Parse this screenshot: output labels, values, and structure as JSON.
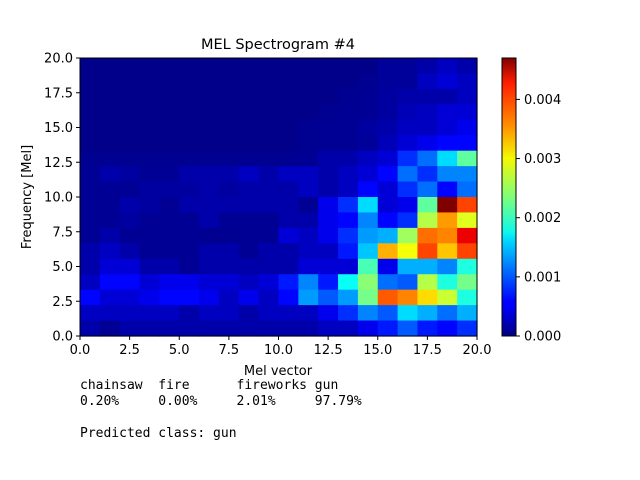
{
  "chart_data": {
    "type": "heatmap",
    "title": "MEL Spectrogram #4",
    "xlabel": "Mel vector",
    "ylabel": "Frequency [Mel]",
    "xlim": [
      0,
      20
    ],
    "ylim": [
      0,
      20
    ],
    "x_ticks": [
      "0.0",
      "2.5",
      "5.0",
      "7.5",
      "10.0",
      "12.5",
      "15.0",
      "17.5",
      "20.0"
    ],
    "y_ticks": [
      "0.0",
      "2.5",
      "5.0",
      "7.5",
      "10.0",
      "12.5",
      "15.0",
      "17.5",
      "20.0"
    ],
    "colormap": "jet",
    "colorbar": {
      "vmin": 0,
      "vmax": 0.0047,
      "ticks": [
        "0.000",
        "0.001",
        "0.002",
        "0.003",
        "0.004"
      ]
    },
    "grid": false,
    "values_rows_top_to_bottom": [
      [
        5e-05,
        5e-05,
        5e-05,
        5e-05,
        5e-05,
        5e-05,
        5e-05,
        5e-05,
        5e-05,
        5e-05,
        5e-05,
        5e-05,
        5e-05,
        5e-05,
        5e-05,
        0.00012,
        0.00012,
        0.0002,
        0.0003,
        0.0002
      ],
      [
        5e-05,
        5e-05,
        5e-05,
        5e-05,
        5e-05,
        5e-05,
        5e-05,
        5e-05,
        5e-05,
        5e-05,
        5e-05,
        5e-05,
        5e-05,
        5e-05,
        8e-05,
        0.00012,
        0.00012,
        0.0003,
        0.0004,
        0.0003
      ],
      [
        5e-05,
        5e-05,
        5e-05,
        5e-05,
        5e-05,
        5e-05,
        5e-05,
        5e-05,
        5e-05,
        5e-05,
        5e-05,
        5e-05,
        5e-05,
        8e-05,
        0.0001,
        0.00015,
        0.0002,
        0.0002,
        0.0002,
        0.0003
      ],
      [
        5e-05,
        5e-05,
        5e-05,
        5e-05,
        5e-05,
        5e-05,
        5e-05,
        5e-05,
        5e-05,
        5e-05,
        5e-05,
        5e-05,
        8e-05,
        0.0001,
        0.0001,
        0.00015,
        0.00025,
        0.0003,
        0.0004,
        0.0004
      ],
      [
        5e-05,
        5e-05,
        5e-05,
        5e-05,
        5e-05,
        5e-05,
        5e-05,
        5e-05,
        5e-05,
        5e-05,
        5e-05,
        8e-05,
        0.0001,
        0.0001,
        0.00015,
        0.0002,
        0.0003,
        0.0003,
        0.0004,
        0.0005
      ],
      [
        5e-05,
        5e-05,
        5e-05,
        5e-05,
        5e-05,
        5e-05,
        5e-05,
        5e-05,
        5e-05,
        5e-05,
        5e-05,
        8e-05,
        0.0001,
        0.0001,
        0.00012,
        0.00025,
        0.0004,
        0.0005,
        0.0006,
        0.0006
      ],
      [
        8e-05,
        8e-05,
        8e-05,
        8e-05,
        8e-05,
        8e-05,
        8e-05,
        8e-05,
        8e-05,
        8e-05,
        8e-05,
        0.0001,
        0.0002,
        0.0002,
        0.0003,
        0.0004,
        0.0008,
        0.0011,
        0.0016,
        0.0022
      ],
      [
        0.0001,
        0.0002,
        0.00015,
        0.0001,
        0.0001,
        0.0002,
        0.0002,
        0.0002,
        0.0003,
        0.0002,
        0.0003,
        0.0003,
        0.0002,
        0.0003,
        0.0004,
        0.0006,
        0.0011,
        0.0008,
        0.0012,
        0.0012
      ],
      [
        0.0001,
        0.0001,
        0.0001,
        0.00015,
        0.00015,
        0.00015,
        0.0002,
        0.00015,
        0.0002,
        0.0002,
        0.0002,
        0.0003,
        0.0002,
        0.0003,
        0.0006,
        0.0004,
        0.0008,
        0.0011,
        0.0006,
        0.0011
      ],
      [
        0.0001,
        0.0001,
        0.0002,
        0.00015,
        0.0001,
        0.0002,
        0.0002,
        0.0002,
        0.0002,
        0.0002,
        0.0002,
        0.0001,
        0.0005,
        0.0008,
        0.0016,
        0.0004,
        0.0005,
        0.0022,
        0.0047,
        0.0038
      ],
      [
        0.0001,
        0.0001,
        0.00015,
        0.0001,
        0.0001,
        0.0001,
        0.0002,
        0.0001,
        0.0001,
        0.0001,
        0.0002,
        0.0002,
        0.0005,
        0.0006,
        0.0012,
        0.0006,
        0.0008,
        0.0026,
        0.0034,
        0.0028
      ],
      [
        0.0001,
        0.0002,
        0.0001,
        0.0001,
        0.0001,
        0.0001,
        8e-05,
        8e-05,
        0.0001,
        0.0001,
        0.0004,
        0.0003,
        0.0005,
        0.0008,
        0.0013,
        0.0014,
        0.0025,
        0.0036,
        0.0035,
        0.0042
      ],
      [
        0.0002,
        0.0003,
        0.0002,
        0.0001,
        0.0001,
        0.0001,
        0.0002,
        0.0002,
        0.0001,
        0.0002,
        0.0002,
        0.0003,
        0.0003,
        0.0007,
        0.0015,
        0.0033,
        0.0029,
        0.0038,
        0.0032,
        0.0038
      ],
      [
        0.0002,
        0.0004,
        0.0004,
        0.0002,
        0.0002,
        0.0001,
        0.0002,
        0.0002,
        0.0002,
        0.0002,
        0.0002,
        0.0004,
        0.0004,
        0.0004,
        0.0021,
        0.0005,
        0.0014,
        0.0014,
        0.0012,
        0.0019
      ],
      [
        0.0003,
        0.0006,
        0.0006,
        0.0004,
        0.0005,
        0.0005,
        0.0004,
        0.0004,
        0.0003,
        0.0004,
        0.0007,
        0.0012,
        0.0007,
        0.0018,
        0.0024,
        0.0011,
        0.001,
        0.0026,
        0.0019,
        0.0023
      ],
      [
        0.0006,
        0.0004,
        0.0004,
        0.0005,
        0.0006,
        0.0006,
        0.0005,
        0.0003,
        0.0005,
        0.0003,
        0.0006,
        0.0013,
        0.001,
        0.0013,
        0.0023,
        0.0037,
        0.0035,
        0.0031,
        0.0027,
        0.0019
      ],
      [
        0.0003,
        0.0003,
        0.0003,
        0.0003,
        0.0003,
        0.0002,
        0.0003,
        0.0003,
        0.0002,
        0.0003,
        0.0003,
        0.0003,
        0.0005,
        0.0008,
        0.0012,
        0.001,
        0.0016,
        0.0014,
        0.0011,
        0.0014
      ],
      [
        0.0002,
        0.0001,
        0.0002,
        0.0002,
        0.0002,
        0.0002,
        0.0002,
        0.0002,
        0.0002,
        0.0002,
        0.0002,
        0.0002,
        0.0003,
        0.0003,
        0.0005,
        0.0007,
        0.001,
        0.0007,
        0.0006,
        0.0008
      ]
    ]
  },
  "predictions": {
    "header": "chainsaw  fire      fireworks gun",
    "values": "0.20%     0.00%     2.01%     97.79%",
    "predicted": "Predicted class: gun"
  }
}
